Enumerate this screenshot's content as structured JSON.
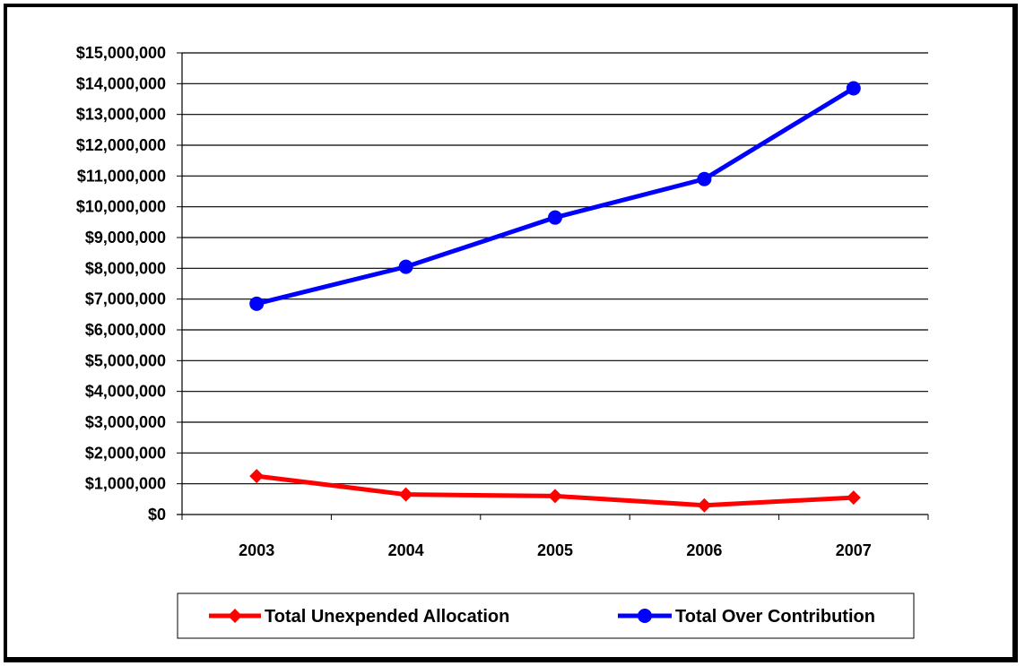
{
  "chart_data": {
    "type": "line",
    "title": "",
    "xlabel": "",
    "ylabel": "",
    "categories": [
      "2003",
      "2004",
      "2005",
      "2006",
      "2007"
    ],
    "ylim": [
      0,
      15000000
    ],
    "ytick_step": 1000000,
    "ytick_labels": [
      "$0",
      "$1,000,000",
      "$2,000,000",
      "$3,000,000",
      "$4,000,000",
      "$5,000,000",
      "$6,000,000",
      "$7,000,000",
      "$8,000,000",
      "$9,000,000",
      "$10,000,000",
      "$11,000,000",
      "$12,000,000",
      "$13,000,000",
      "$14,000,000",
      "$15,000,000"
    ],
    "grid": true,
    "legend_position": "bottom",
    "series": [
      {
        "name": "Total Unexpended Allocation",
        "values": [
          1250000,
          650000,
          600000,
          300000,
          550000
        ],
        "color": "#ff0000",
        "marker": "diamond"
      },
      {
        "name": "Total Over Contribution",
        "values": [
          6850000,
          8050000,
          9650000,
          10900000,
          13850000
        ],
        "color": "#0000ff",
        "marker": "circle"
      }
    ]
  }
}
